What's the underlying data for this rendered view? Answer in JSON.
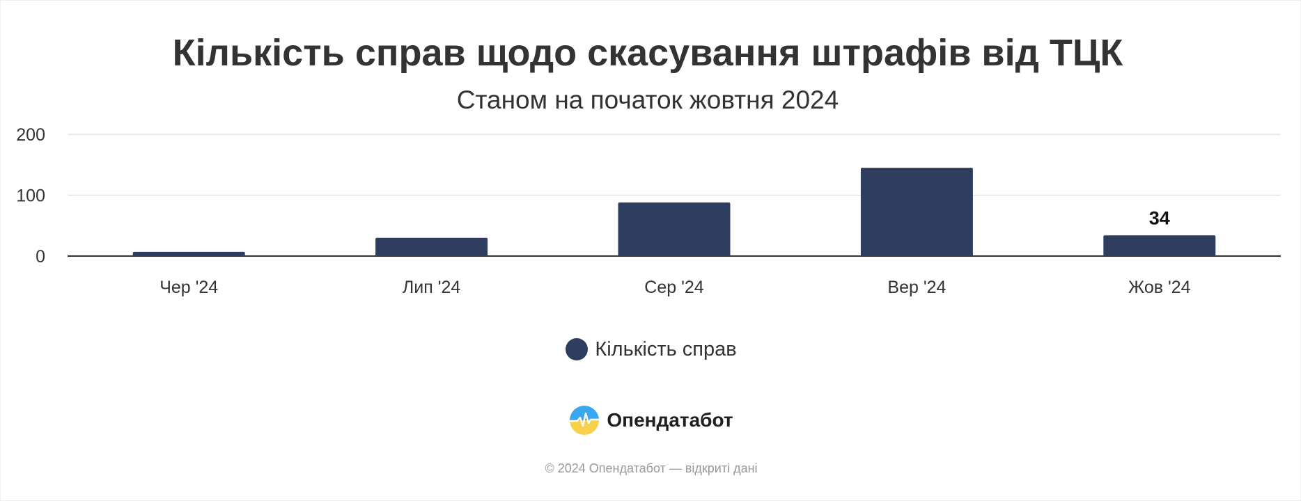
{
  "chart_data": {
    "type": "bar",
    "title": "Кількість справ щодо скасування штрафів від ТЦК",
    "subtitle": "Станом на початок жовтня 2024",
    "categories": [
      "Чер '24",
      "Лип '24",
      "Сер '24",
      "Вер '24",
      "Жов '24"
    ],
    "series": [
      {
        "name": "Кількість справ",
        "values": [
          7,
          30,
          88,
          145,
          34
        ]
      }
    ],
    "data_labels": [
      "",
      "",
      "",
      "",
      "34"
    ],
    "ylim": [
      0,
      200
    ],
    "yticks": [
      0,
      100,
      200
    ],
    "grid": true,
    "legend": "bottom-center",
    "bar_color": "#2f3e5e"
  },
  "branding": {
    "name": "Опендатабот",
    "logo_icon": "opendatabot-logo-icon"
  },
  "footer": {
    "text": "© 2024 Опендатабот — відкриті дані"
  }
}
